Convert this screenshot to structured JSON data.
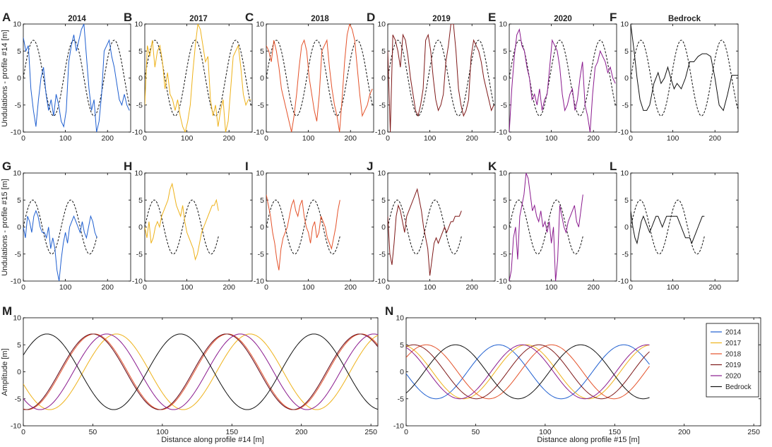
{
  "chart_data": {
    "type": "line",
    "x_label_p14": "Distance along profile #14 [m]",
    "x_label_p15": "Distance along profile #15 [m]",
    "y_label_p14": "Undulations - profile #14 [m]",
    "y_label_p15": "Undulations - profile #15 [m]",
    "y_label_amp": "Amplitude [m]",
    "xticks_small": [
      "0",
      "100",
      "200"
    ],
    "yticks_small": [
      "-10",
      "-5",
      "0",
      "5",
      "10"
    ],
    "xticks_wide": [
      "0",
      "50",
      "100",
      "150",
      "200",
      "250"
    ],
    "yticks_wide": [
      "-10",
      "-5",
      "0",
      "5",
      "10"
    ],
    "series_colors": {
      "2014": "#1f5fd0",
      "2017": "#eeb21a",
      "2018": "#e4522a",
      "2019": "#7e1818",
      "2020": "#8a1a8e",
      "Bedrock": "#111111"
    },
    "legend": [
      "2014",
      "2017",
      "2018",
      "2019",
      "2020",
      "Bedrock"
    ],
    "profile14": {
      "xlim": [
        0,
        255
      ],
      "ylim": [
        -10,
        10
      ],
      "sine_fit": {
        "amplitude": 7,
        "period": 96,
        "phase": 0
      },
      "panels": [
        {
          "letter": "A",
          "title": "2014",
          "series": "2014",
          "x": [
            0,
            6,
            12,
            18,
            24,
            30,
            36,
            42,
            48,
            54,
            60,
            66,
            72,
            78,
            84,
            90,
            96,
            102,
            108,
            114,
            120,
            126,
            132,
            138,
            144,
            150,
            156,
            162,
            168,
            174,
            180,
            186,
            192,
            198,
            204,
            210,
            216,
            222,
            228,
            234,
            240,
            246,
            252
          ],
          "y": [
            7.5,
            5,
            6,
            -2,
            -6,
            -9,
            -4,
            0,
            2,
            -3,
            -6,
            -4,
            -7,
            -3,
            -5,
            -8,
            -9,
            -6,
            3,
            6,
            8,
            5,
            7,
            9,
            10,
            4,
            -2,
            -6,
            -4,
            -10,
            -8,
            -3,
            5,
            6,
            7,
            4,
            2,
            -1,
            -4,
            -5,
            -3,
            -5,
            -6
          ]
        },
        {
          "letter": "B",
          "title": "2017",
          "series": "2017",
          "x": [
            0,
            6,
            12,
            18,
            24,
            30,
            36,
            42,
            48,
            54,
            60,
            66,
            72,
            78,
            84,
            90,
            96,
            102,
            108,
            114,
            120,
            126,
            132,
            138,
            144,
            150,
            156,
            162,
            168,
            174,
            180,
            186,
            192,
            198,
            204,
            210,
            216,
            222,
            228,
            234,
            240,
            246,
            252
          ],
          "y": [
            -5,
            6,
            4,
            7,
            2,
            5,
            6,
            3,
            -2,
            1,
            -3,
            -4,
            -6,
            -4,
            -7,
            -9,
            -10,
            -8,
            -5,
            1,
            6,
            10,
            9,
            6,
            3,
            4,
            -4,
            -7,
            -5,
            -9,
            -6,
            -4,
            -10,
            -8,
            -2,
            4,
            5,
            6,
            2,
            -3,
            -5,
            -4,
            -4
          ]
        },
        {
          "letter": "C",
          "title": "2018",
          "series": "2018",
          "x": [
            0,
            6,
            12,
            18,
            24,
            30,
            36,
            42,
            48,
            54,
            60,
            66,
            72,
            78,
            84,
            90,
            96,
            102,
            108,
            114,
            120,
            126,
            132,
            138,
            144,
            150,
            156,
            162,
            168,
            174,
            180,
            186,
            192,
            198,
            204,
            210,
            216,
            222,
            228,
            234,
            240,
            246,
            252
          ],
          "y": [
            6,
            5,
            3,
            7,
            5,
            2,
            -2,
            -4,
            -6,
            -8,
            -10,
            -7,
            -3,
            2,
            6,
            7,
            5,
            0,
            -3,
            -6,
            -8,
            -3,
            5,
            6,
            7,
            2,
            -2,
            -5,
            -7,
            -10,
            -4,
            3,
            8,
            10,
            9,
            7,
            2,
            -3,
            -7,
            -6,
            -5,
            -3,
            -2
          ]
        },
        {
          "letter": "D",
          "title": "2019",
          "series": "2019",
          "x": [
            0,
            6,
            12,
            18,
            24,
            30,
            36,
            42,
            48,
            54,
            60,
            66,
            72,
            78,
            84,
            90,
            96,
            102,
            108,
            114,
            120,
            126,
            132,
            138,
            144,
            150,
            156,
            162,
            168,
            174,
            180,
            186,
            192,
            198,
            204,
            210,
            216,
            222,
            228,
            234,
            240,
            246,
            252
          ],
          "y": [
            5,
            -10,
            8,
            7,
            5,
            2,
            8,
            7,
            4,
            0,
            -3,
            -6,
            -7,
            -5,
            -2,
            7,
            8,
            5,
            0,
            -4,
            -6,
            -5,
            -3,
            3,
            6,
            10,
            10,
            5,
            -2,
            -5,
            -7,
            -6,
            -4,
            4,
            7,
            6,
            5,
            3,
            0,
            -2,
            -4,
            -6,
            -5
          ]
        },
        {
          "letter": "E",
          "title": "2020",
          "series": "2020",
          "x": [
            0,
            6,
            12,
            18,
            24,
            30,
            36,
            42,
            48,
            54,
            60,
            66,
            72,
            78,
            84,
            90,
            96,
            102,
            108,
            114,
            120,
            126,
            132,
            138,
            144,
            150,
            156,
            162,
            168,
            174,
            180,
            186,
            192,
            198,
            204,
            210,
            216,
            222,
            228,
            234,
            240,
            246,
            252
          ],
          "y": [
            -10,
            -2,
            4,
            8,
            9,
            6,
            5,
            2,
            0,
            -4,
            -3,
            -5,
            -2,
            -6,
            -4,
            -3,
            2,
            7,
            6,
            5,
            2,
            -3,
            -6,
            -5,
            -3,
            -2,
            -6,
            -4,
            0,
            3,
            -5,
            -7,
            -10,
            -3,
            2,
            3,
            5,
            4,
            3,
            1,
            2,
            0,
            -1
          ]
        },
        {
          "letter": "F",
          "title": "Bedrock",
          "series": "Bedrock",
          "x": [
            0,
            8,
            15,
            22,
            30,
            38,
            45,
            55,
            65,
            72,
            80,
            88,
            95,
            103,
            110,
            120,
            130,
            140,
            150,
            160,
            170,
            180,
            190,
            200,
            210,
            220,
            230,
            240,
            250,
            255
          ],
          "y": [
            10,
            5,
            0,
            -4,
            -6,
            -6,
            -5,
            -1,
            1,
            -1,
            0,
            2,
            0,
            -2,
            -1,
            -2,
            0,
            3,
            3,
            4,
            4.5,
            4.5,
            4,
            0,
            -5,
            -6,
            -3,
            0.5,
            0.5,
            0.5
          ]
        }
      ]
    },
    "profile15": {
      "xlim": [
        0,
        255
      ],
      "ylim": [
        -10,
        10
      ],
      "sine_fit": {
        "amplitude": 5,
        "period": 90,
        "phase": 0
      },
      "panels": [
        {
          "letter": "G",
          "title": "",
          "series": "2014",
          "x": [
            0,
            5,
            10,
            15,
            20,
            25,
            30,
            35,
            40,
            45,
            50,
            55,
            60,
            65,
            70,
            75,
            80,
            85,
            90,
            95,
            100,
            105,
            110,
            115,
            120,
            125,
            130,
            135,
            140,
            145,
            150,
            155,
            160,
            165,
            170,
            175
          ],
          "y": [
            0,
            -2,
            2,
            1,
            -1,
            2,
            3,
            2,
            0,
            -1,
            -1,
            -2,
            0,
            -4,
            -2,
            -4,
            -8,
            -10,
            -6,
            -3,
            -1,
            -3,
            0,
            1,
            2,
            1,
            0,
            -1,
            1,
            -1,
            -2,
            0,
            2,
            1,
            -1,
            -2
          ]
        },
        {
          "letter": "H",
          "title": "",
          "series": "2017",
          "x": [
            0,
            5,
            10,
            15,
            20,
            25,
            30,
            35,
            40,
            45,
            50,
            55,
            60,
            65,
            70,
            75,
            80,
            85,
            90,
            95,
            100,
            105,
            110,
            115,
            120,
            125,
            130,
            135,
            140,
            145,
            150,
            155,
            160,
            165,
            170,
            175
          ],
          "y": [
            0,
            -2,
            1,
            -3,
            -2,
            0,
            1,
            0,
            2,
            3,
            4,
            5,
            7,
            8,
            6,
            4,
            3,
            2,
            4,
            1,
            -1,
            -2,
            -3,
            -4,
            -6,
            -5,
            -3,
            -1,
            0,
            1,
            2,
            3,
            4,
            4,
            5,
            3
          ]
        },
        {
          "letter": "I",
          "title": "",
          "series": "2018",
          "x": [
            0,
            5,
            10,
            15,
            20,
            25,
            30,
            35,
            40,
            45,
            50,
            55,
            60,
            65,
            70,
            75,
            80,
            85,
            90,
            95,
            100,
            105,
            110,
            115,
            120,
            125,
            130,
            135,
            140,
            145,
            150,
            155,
            160,
            165,
            170,
            175
          ],
          "y": [
            6,
            4,
            2,
            -1,
            -3,
            -6,
            -8,
            -4,
            -2,
            -1,
            0,
            2,
            4,
            5,
            3,
            2,
            4,
            5,
            2,
            0,
            -1,
            -3,
            0,
            1,
            -2,
            -1,
            2,
            1,
            0,
            -2,
            -3,
            -4,
            -2,
            0,
            3,
            5
          ]
        },
        {
          "letter": "J",
          "title": "",
          "series": "2019",
          "x": [
            0,
            5,
            10,
            15,
            20,
            25,
            30,
            35,
            40,
            45,
            50,
            55,
            60,
            65,
            70,
            75,
            80,
            85,
            90,
            95,
            100,
            105,
            110,
            115,
            120,
            125,
            130,
            135,
            140,
            145,
            150,
            155,
            160,
            165,
            170,
            175
          ],
          "y": [
            2,
            -5,
            -7,
            -3,
            2,
            4,
            3,
            1,
            -1,
            2,
            3,
            4,
            5,
            6,
            7,
            5,
            3,
            0,
            -2,
            -4,
            -9,
            -6,
            -3,
            -2,
            -3,
            -2,
            -1,
            0,
            -1,
            0,
            1,
            1,
            2,
            2,
            2,
            3
          ]
        },
        {
          "letter": "K",
          "title": "",
          "series": "2020",
          "x": [
            0,
            5,
            10,
            15,
            20,
            25,
            30,
            35,
            40,
            45,
            50,
            55,
            60,
            65,
            70,
            75,
            80,
            85,
            90,
            95,
            100,
            105,
            110,
            115,
            120,
            125,
            130,
            135,
            140,
            145,
            150,
            155,
            160,
            165,
            170,
            175
          ],
          "y": [
            -10,
            -8,
            -2,
            0,
            -6,
            2,
            4,
            6,
            10,
            9,
            6,
            3,
            4,
            2,
            1,
            3,
            0,
            1,
            -1,
            1,
            -3,
            0,
            -10,
            -6,
            4,
            2,
            0,
            -1,
            1,
            2,
            3,
            4,
            1,
            0,
            3,
            6
          ]
        },
        {
          "letter": "L",
          "title": "",
          "series": "Bedrock",
          "x": [
            0,
            5,
            10,
            15,
            20,
            25,
            30,
            35,
            40,
            45,
            50,
            55,
            60,
            65,
            70,
            75,
            80,
            85,
            90,
            95,
            100,
            105,
            110,
            115,
            120,
            125,
            130,
            135,
            140,
            145,
            150,
            155,
            160,
            165,
            170,
            175
          ],
          "y": [
            3,
            0,
            -2,
            -3,
            -1,
            1,
            2,
            1,
            0,
            -1,
            0,
            1,
            2,
            2,
            1,
            0,
            1,
            2,
            2,
            2,
            2,
            2,
            2,
            1,
            0,
            -1,
            -2,
            -2,
            -2,
            -3,
            -2,
            -1,
            0,
            1,
            2,
            2
          ]
        }
      ]
    },
    "amplitude_plots": [
      {
        "letter": "M",
        "xlim": [
          0,
          255
        ],
        "ylim": [
          -10,
          10
        ],
        "amplitude": 7,
        "period": 96,
        "phases": {
          "2014": -26,
          "2017": -43,
          "2018": -27,
          "2019": -26,
          "2020": -36,
          "Bedrock": -89
        }
      },
      {
        "letter": "N",
        "xlim": [
          0,
          255
        ],
        "ylim": [
          -10,
          10
        ],
        "amplitude": 5,
        "period": 90,
        "x_end": 175,
        "phases": {
          "2014": -44,
          "2017": -64,
          "2018": -82,
          "2019": -73,
          "2020": -61,
          "Bedrock": -103
        }
      }
    ]
  }
}
